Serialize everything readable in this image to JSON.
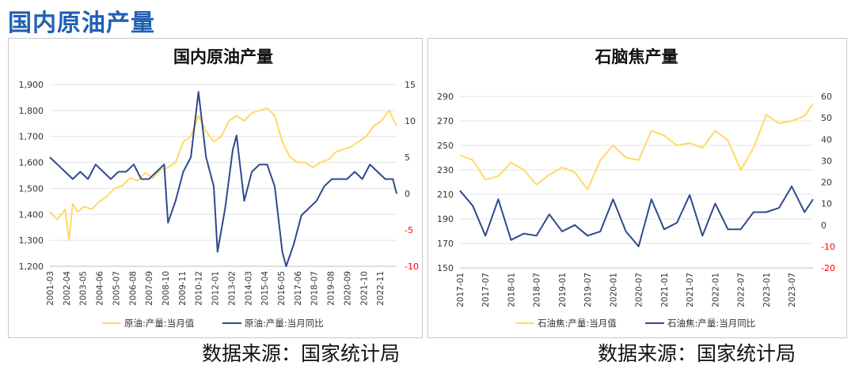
{
  "page": {
    "title": "国内原油产量"
  },
  "sources": {
    "left": "数据来源：国家统计局",
    "right": "数据来源：国家统计局"
  },
  "colors": {
    "yellow": "#ffd966",
    "blue": "#2e4a8e",
    "title": "#1f5fb4",
    "axis_red": "#ff0000"
  },
  "chart_data": [
    {
      "type": "line",
      "title": "国内原油产量",
      "x_ticks": [
        "2001-03",
        "2002-04",
        "2003-05",
        "2004-06",
        "2005-07",
        "2006-08",
        "2007-09",
        "2008-10",
        "2009-11",
        "2010-12",
        "2012-01",
        "2013-02",
        "2014-03",
        "2015-04",
        "2016-05",
        "2017-06",
        "2018-07",
        "2019-08",
        "2020-09",
        "2021-10",
        "2022-11"
      ],
      "x_range": [
        "2001-03",
        "2023-12"
      ],
      "y_left": {
        "min": 1200,
        "max": 1900,
        "ticks": [
          "1,200",
          "1,300",
          "1,400",
          "1,500",
          "1,600",
          "1,700",
          "1,800",
          "1,900"
        ]
      },
      "y_right": {
        "min": -10,
        "max": 15,
        "ticks": [
          "-10",
          "-5",
          "0",
          "5",
          "10",
          "15"
        ],
        "negative_color": "#ff0000"
      },
      "series": [
        {
          "name": "原油:产量:当月值",
          "axis": "left",
          "color": "#ffd966",
          "points": [
            [
              "2001-03",
              1410
            ],
            [
              "2001-09",
              1380
            ],
            [
              "2002-03",
              1420
            ],
            [
              "2002-06",
              1300
            ],
            [
              "2002-09",
              1440
            ],
            [
              "2003-01",
              1410
            ],
            [
              "2003-06",
              1430
            ],
            [
              "2003-12",
              1420
            ],
            [
              "2004-06",
              1450
            ],
            [
              "2004-12",
              1470
            ],
            [
              "2005-06",
              1500
            ],
            [
              "2005-12",
              1510
            ],
            [
              "2006-06",
              1540
            ],
            [
              "2006-12",
              1530
            ],
            [
              "2007-06",
              1560
            ],
            [
              "2007-12",
              1540
            ],
            [
              "2008-06",
              1570
            ],
            [
              "2008-12",
              1580
            ],
            [
              "2009-06",
              1600
            ],
            [
              "2009-12",
              1680
            ],
            [
              "2010-06",
              1700
            ],
            [
              "2010-12",
              1780
            ],
            [
              "2011-06",
              1720
            ],
            [
              "2011-12",
              1680
            ],
            [
              "2012-06",
              1700
            ],
            [
              "2012-12",
              1760
            ],
            [
              "2013-06",
              1780
            ],
            [
              "2013-12",
              1760
            ],
            [
              "2014-06",
              1790
            ],
            [
              "2014-12",
              1800
            ],
            [
              "2015-06",
              1810
            ],
            [
              "2015-12",
              1780
            ],
            [
              "2016-06",
              1680
            ],
            [
              "2016-12",
              1620
            ],
            [
              "2017-06",
              1600
            ],
            [
              "2017-12",
              1600
            ],
            [
              "2018-06",
              1580
            ],
            [
              "2018-12",
              1600
            ],
            [
              "2019-06",
              1610
            ],
            [
              "2019-12",
              1640
            ],
            [
              "2020-06",
              1650
            ],
            [
              "2020-12",
              1660
            ],
            [
              "2021-06",
              1680
            ],
            [
              "2021-12",
              1700
            ],
            [
              "2022-06",
              1740
            ],
            [
              "2022-12",
              1760
            ],
            [
              "2023-06",
              1800
            ],
            [
              "2023-12",
              1740
            ]
          ]
        },
        {
          "name": "原油:产量:当月同比",
          "axis": "right",
          "color": "#2e4a8e",
          "points": [
            [
              "2001-03",
              5
            ],
            [
              "2001-09",
              4
            ],
            [
              "2002-03",
              3
            ],
            [
              "2002-09",
              2
            ],
            [
              "2003-03",
              3
            ],
            [
              "2003-09",
              2
            ],
            [
              "2004-03",
              4
            ],
            [
              "2004-09",
              3
            ],
            [
              "2005-03",
              2
            ],
            [
              "2005-09",
              3
            ],
            [
              "2006-03",
              3
            ],
            [
              "2006-09",
              4
            ],
            [
              "2007-03",
              2
            ],
            [
              "2007-09",
              2
            ],
            [
              "2008-03",
              3
            ],
            [
              "2008-09",
              4
            ],
            [
              "2008-12",
              -4
            ],
            [
              "2009-06",
              -1
            ],
            [
              "2009-12",
              3
            ],
            [
              "2010-06",
              5
            ],
            [
              "2010-12",
              14
            ],
            [
              "2011-06",
              5
            ],
            [
              "2011-12",
              1
            ],
            [
              "2012-03",
              -8
            ],
            [
              "2012-09",
              -2
            ],
            [
              "2013-03",
              6
            ],
            [
              "2013-06",
              8
            ],
            [
              "2013-12",
              -1
            ],
            [
              "2014-06",
              3
            ],
            [
              "2014-12",
              4
            ],
            [
              "2015-06",
              4
            ],
            [
              "2015-12",
              1
            ],
            [
              "2016-06",
              -8
            ],
            [
              "2016-09",
              -10
            ],
            [
              "2017-03",
              -7
            ],
            [
              "2017-09",
              -3
            ],
            [
              "2018-03",
              -2
            ],
            [
              "2018-09",
              -1
            ],
            [
              "2019-03",
              1
            ],
            [
              "2019-09",
              2
            ],
            [
              "2020-03",
              2
            ],
            [
              "2020-09",
              2
            ],
            [
              "2021-03",
              3
            ],
            [
              "2021-09",
              2
            ],
            [
              "2022-03",
              4
            ],
            [
              "2022-09",
              3
            ],
            [
              "2023-03",
              2
            ],
            [
              "2023-09",
              2
            ],
            [
              "2023-12",
              0
            ]
          ]
        }
      ]
    },
    {
      "type": "line",
      "title": "石脑焦产量",
      "x_ticks": [
        "2017-01",
        "2017-07",
        "2018-01",
        "2018-07",
        "2019-01",
        "2019-07",
        "2020-01",
        "2020-07",
        "2021-01",
        "2021-07",
        "2022-01",
        "2022-07",
        "2023-01",
        "2023-07"
      ],
      "x_range": [
        "2017-01",
        "2023-12"
      ],
      "y_left": {
        "min": 150,
        "max": 290,
        "ticks": [
          "150",
          "170",
          "190",
          "210",
          "230",
          "250",
          "270",
          "290"
        ]
      },
      "y_right": {
        "min": -20,
        "max": 60,
        "ticks": [
          "-20",
          "-10",
          "0",
          "10",
          "20",
          "30",
          "40",
          "50",
          "60"
        ],
        "negative_color": "#ff0000"
      },
      "series": [
        {
          "name": "石油焦:产量:当月值",
          "axis": "left",
          "color": "#ffd966",
          "points": [
            [
              "2017-01",
              242
            ],
            [
              "2017-04",
              238
            ],
            [
              "2017-07",
              222
            ],
            [
              "2017-10",
              225
            ],
            [
              "2018-01",
              236
            ],
            [
              "2018-04",
              230
            ],
            [
              "2018-07",
              218
            ],
            [
              "2018-10",
              226
            ],
            [
              "2019-01",
              232
            ],
            [
              "2019-04",
              228
            ],
            [
              "2019-07",
              214
            ],
            [
              "2019-10",
              238
            ],
            [
              "2020-01",
              250
            ],
            [
              "2020-04",
              240
            ],
            [
              "2020-07",
              238
            ],
            [
              "2020-10",
              262
            ],
            [
              "2021-01",
              258
            ],
            [
              "2021-04",
              250
            ],
            [
              "2021-07",
              252
            ],
            [
              "2021-10",
              248
            ],
            [
              "2022-01",
              262
            ],
            [
              "2022-04",
              254
            ],
            [
              "2022-07",
              230
            ],
            [
              "2022-10",
              248
            ],
            [
              "2023-01",
              275
            ],
            [
              "2023-04",
              268
            ],
            [
              "2023-07",
              270
            ],
            [
              "2023-10",
              274
            ],
            [
              "2023-12",
              284
            ]
          ]
        },
        {
          "name": "石油焦:产量:当月同比",
          "axis": "right",
          "color": "#2e4a8e",
          "points": [
            [
              "2017-01",
              16
            ],
            [
              "2017-04",
              9
            ],
            [
              "2017-07",
              -5
            ],
            [
              "2017-10",
              12
            ],
            [
              "2018-01",
              -7
            ],
            [
              "2018-04",
              -4
            ],
            [
              "2018-07",
              -5
            ],
            [
              "2018-10",
              5
            ],
            [
              "2019-01",
              -3
            ],
            [
              "2019-04",
              0
            ],
            [
              "2019-07",
              -5
            ],
            [
              "2019-10",
              -3
            ],
            [
              "2020-01",
              12
            ],
            [
              "2020-04",
              -3
            ],
            [
              "2020-07",
              -10
            ],
            [
              "2020-10",
              12
            ],
            [
              "2021-01",
              -2
            ],
            [
              "2021-04",
              1
            ],
            [
              "2021-07",
              14
            ],
            [
              "2021-10",
              -5
            ],
            [
              "2022-01",
              10
            ],
            [
              "2022-04",
              -2
            ],
            [
              "2022-07",
              -2
            ],
            [
              "2022-10",
              6
            ],
            [
              "2023-01",
              6
            ],
            [
              "2023-04",
              8
            ],
            [
              "2023-07",
              18
            ],
            [
              "2023-10",
              6
            ],
            [
              "2023-12",
              12
            ]
          ]
        }
      ]
    }
  ]
}
